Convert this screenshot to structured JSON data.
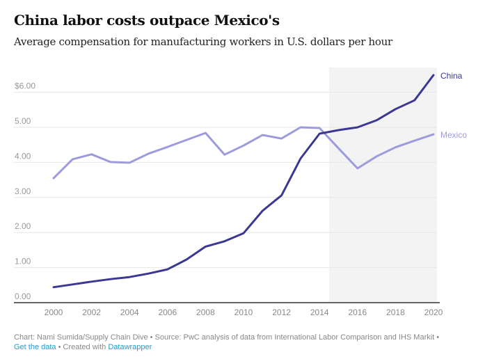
{
  "header": {
    "title": "China labor costs outpace Mexico's",
    "subtitle": "Average compensation for manufacturing workers in U.S. dollars per hour"
  },
  "footer": {
    "line1": "Chart: Nami Sumida/Supply Chain Dive • Source: PwC analysis of data from International Labor Comparison and IHS Markit •",
    "get_data_link": "Get the data",
    "separator": " • Created with ",
    "datawrapper_link": "Datawrapper"
  },
  "colors": {
    "china": "#3b3893",
    "mexico": "#9d9bdc",
    "highlight_band": "#f3f3f3",
    "gridline": "#e6e6e6",
    "axis": "#666666",
    "tick_label": "#999999",
    "link": "#1d9ad6"
  },
  "chart_data": {
    "type": "line",
    "title": "China labor costs outpace Mexico's",
    "subtitle": "Average compensation for manufacturing workers in U.S. dollars per hour",
    "xlabel": "",
    "ylabel": "",
    "x": [
      2000,
      2001,
      2002,
      2003,
      2004,
      2005,
      2006,
      2007,
      2008,
      2009,
      2010,
      2011,
      2012,
      2013,
      2014,
      2015,
      2016,
      2017,
      2018,
      2019,
      2020
    ],
    "series": [
      {
        "name": "China",
        "color": "#3b3893",
        "values": [
          0.44,
          0.52,
          0.6,
          0.67,
          0.73,
          0.83,
          0.95,
          1.23,
          1.6,
          1.75,
          1.98,
          2.62,
          3.06,
          4.11,
          4.82,
          4.92,
          5.0,
          5.2,
          5.52,
          5.77,
          6.49
        ]
      },
      {
        "name": "Mexico",
        "color": "#9d9bdc",
        "values": [
          3.55,
          4.09,
          4.23,
          4.01,
          3.99,
          4.25,
          4.44,
          4.64,
          4.84,
          4.22,
          4.48,
          4.78,
          4.68,
          5.0,
          4.98,
          4.4,
          3.83,
          4.17,
          4.43,
          4.62,
          4.8
        ]
      }
    ],
    "xlim": [
      2000,
      2020
    ],
    "ylim": [
      0,
      6
    ],
    "x_ticks": [
      2000,
      2002,
      2004,
      2006,
      2008,
      2010,
      2012,
      2014,
      2016,
      2018,
      2020
    ],
    "x_tick_labels": [
      "2000",
      "2002",
      "2004",
      "2006",
      "2008",
      "2010",
      "2012",
      "2014",
      "2016",
      "2018",
      "2020"
    ],
    "y_ticks": [
      0,
      1,
      2,
      3,
      4,
      5,
      6
    ],
    "y_tick_labels": [
      "0.00",
      "1.00",
      "2.00",
      "3.00",
      "4.00",
      "5.00",
      "$6.00"
    ],
    "highlight_range": [
      2014.5,
      2020.2
    ],
    "grid": true,
    "legend": "direct labels at line ends (right)"
  }
}
